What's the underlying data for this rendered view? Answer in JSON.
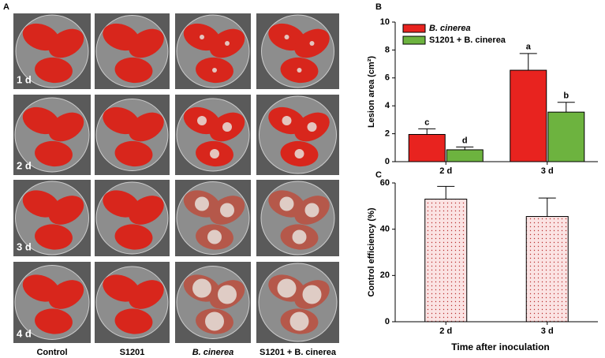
{
  "panel_labels": [
    "A",
    "B",
    "C"
  ],
  "panel_a": {
    "row_labels": [
      "1 d",
      "2 d",
      "3 d",
      "4 d"
    ],
    "column_labels": [
      "Control",
      "S1201",
      "B. cinerea",
      "S1201 + B. cinerea"
    ]
  },
  "chart_data": [
    {
      "type": "bar",
      "y_label": "Lesion area (cm²)",
      "categories": [
        "2 d",
        "3 d"
      ],
      "series": [
        {
          "name": "B. cinerea",
          "color": "#e8231f",
          "values": [
            1.95,
            6.55
          ],
          "errors": [
            0.4,
            1.2
          ],
          "significance": [
            "c",
            "a"
          ]
        },
        {
          "name": "S1201 + B. cinerea",
          "color": "#6db33f",
          "values": [
            0.85,
            3.55
          ],
          "errors": [
            0.2,
            0.7
          ],
          "significance": [
            "d",
            "b"
          ]
        }
      ],
      "ylim": [
        0,
        10
      ],
      "yticks": [
        0,
        2,
        4,
        6,
        8,
        10
      ],
      "legend": "upper left"
    },
    {
      "type": "bar",
      "y_label": "Control efficiency (%)",
      "x_label": "Time after inoculation",
      "categories": [
        "2 d",
        "3 d"
      ],
      "series": [
        {
          "color": "#fbe3e3",
          "values": [
            53,
            45.5
          ],
          "errors": [
            5.5,
            8
          ]
        }
      ],
      "ylim": [
        0,
        60
      ],
      "yticks": [
        0,
        20,
        40,
        60
      ],
      "pattern": "dots"
    }
  ]
}
